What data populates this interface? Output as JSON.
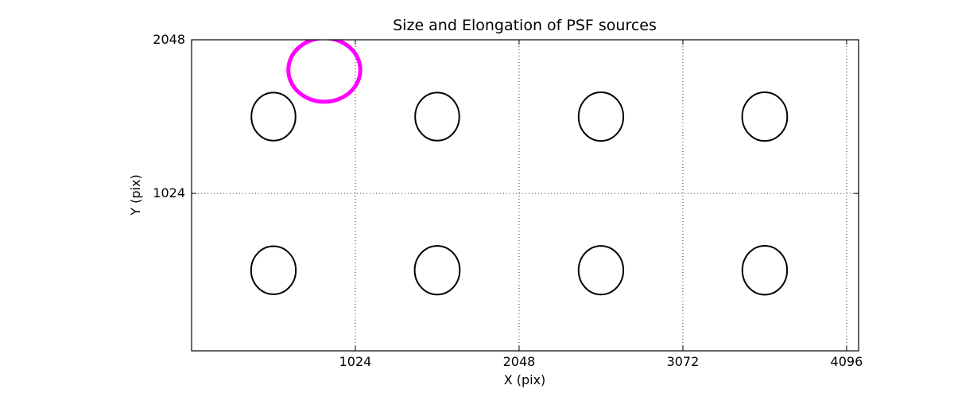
{
  "figure": {
    "background": "#ffffff",
    "frame_color": "#000000"
  },
  "chart_data": {
    "type": "scatter",
    "title": "Size and Elongation of PSF sources",
    "xlabel": "X (pix)",
    "ylabel": "Y (pix)",
    "xlim": [
      0,
      4171
    ],
    "ylim": [
      -25,
      2048
    ],
    "xticks": [
      1024,
      2048,
      3072,
      4096
    ],
    "yticks": [
      1024,
      2048
    ],
    "grid": {
      "on": true,
      "style": "dotted",
      "color": "#000000"
    },
    "legend": "none",
    "marker_shape": "ellipse-outline",
    "sources": [
      {
        "x": 512,
        "y": 1536,
        "rx": 138,
        "ry": 160,
        "color": "#000000",
        "stroke_width": 2
      },
      {
        "x": 1536,
        "y": 1536,
        "rx": 138,
        "ry": 160,
        "color": "#000000",
        "stroke_width": 2
      },
      {
        "x": 2560,
        "y": 1536,
        "rx": 140,
        "ry": 162,
        "color": "#000000",
        "stroke_width": 2
      },
      {
        "x": 3584,
        "y": 1536,
        "rx": 141,
        "ry": 162,
        "color": "#000000",
        "stroke_width": 2
      },
      {
        "x": 512,
        "y": 512,
        "rx": 140,
        "ry": 160,
        "color": "#000000",
        "stroke_width": 2
      },
      {
        "x": 1536,
        "y": 512,
        "rx": 141,
        "ry": 162,
        "color": "#000000",
        "stroke_width": 2
      },
      {
        "x": 2560,
        "y": 512,
        "rx": 140,
        "ry": 162,
        "color": "#000000",
        "stroke_width": 2
      },
      {
        "x": 3584,
        "y": 512,
        "rx": 140,
        "ry": 163,
        "color": "#000000",
        "stroke_width": 2
      },
      {
        "x": 830,
        "y": 1847,
        "rx": 225,
        "ry": 212,
        "color": "#ff00ff",
        "stroke_width": 5,
        "highlight": true
      }
    ]
  }
}
